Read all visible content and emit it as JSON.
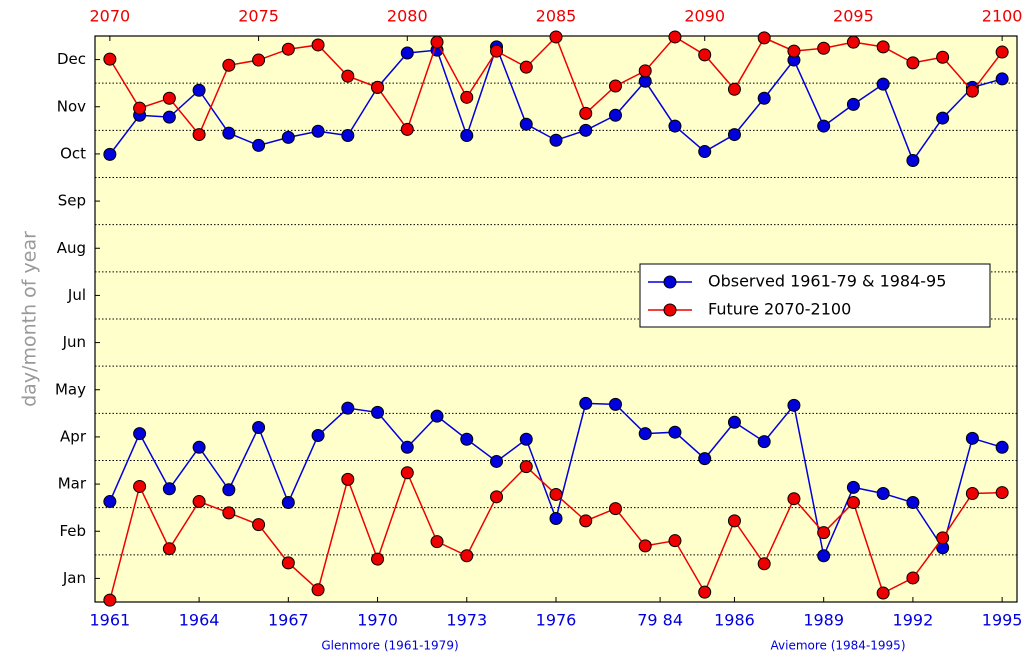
{
  "chart_data": {
    "type": "line",
    "y_label": "day/month of year",
    "annotations": [
      "Glenmore (1961-1979)",
      "Aviemore (1984-1995)"
    ],
    "xlim": [
      -0.5,
      30.5
    ],
    "xticks": [
      {
        "value": 0,
        "label": "1961"
      },
      {
        "value": 3,
        "label": "1964"
      },
      {
        "value": 6,
        "label": "1967"
      },
      {
        "value": 9,
        "label": "1970"
      },
      {
        "value": 12,
        "label": "1973"
      },
      {
        "value": 15,
        "label": "1976"
      },
      {
        "value": 18.5,
        "label": "79 84"
      },
      {
        "value": 21,
        "label": "1986"
      },
      {
        "value": 24,
        "label": "1989"
      },
      {
        "value": 27,
        "label": "1992"
      },
      {
        "value": 30,
        "label": "1995"
      }
    ],
    "x2ticks": [
      {
        "value": 0,
        "label": "2070"
      },
      {
        "value": 5,
        "label": "2075"
      },
      {
        "value": 10,
        "label": "2080"
      },
      {
        "value": 15,
        "label": "2085"
      },
      {
        "value": 20,
        "label": "2090"
      },
      {
        "value": 25,
        "label": "2095"
      },
      {
        "value": 30,
        "label": "2100"
      }
    ],
    "ylim": [
      0,
      12
    ],
    "yticks": [
      {
        "value": 0.5,
        "label": "Jan"
      },
      {
        "value": 1.5,
        "label": "Feb"
      },
      {
        "value": 2.5,
        "label": "Mar"
      },
      {
        "value": 3.5,
        "label": "Apr"
      },
      {
        "value": 4.5,
        "label": "May"
      },
      {
        "value": 5.5,
        "label": "Jun"
      },
      {
        "value": 6.5,
        "label": "Jul"
      },
      {
        "value": 7.5,
        "label": "Aug"
      },
      {
        "value": 8.5,
        "label": "Sep"
      },
      {
        "value": 9.5,
        "label": "Oct"
      },
      {
        "value": 10.5,
        "label": "Nov"
      },
      {
        "value": 11.5,
        "label": "Dec"
      }
    ],
    "ygrid": [
      1,
      2,
      3,
      4,
      5,
      6,
      7,
      8,
      9,
      10,
      11
    ],
    "legend": "right",
    "background": "#ffffcc",
    "series": [
      {
        "name": "Observed 1961-79 & 1984-95",
        "color": "#0000dd",
        "values": [
          9.49,
          10.32,
          10.28,
          10.85,
          9.94,
          9.68,
          9.85,
          9.98,
          9.89,
          10.91,
          11.64,
          11.7,
          9.89,
          11.77,
          10.13,
          9.79,
          10.0,
          10.32,
          11.04,
          10.09,
          9.55,
          9.91,
          10.68,
          11.49,
          10.09,
          10.55,
          10.98,
          9.36,
          10.26,
          10.91,
          11.09
        ],
        "values_lower": [
          2.13,
          3.57,
          2.4,
          3.28,
          2.38,
          3.7,
          2.11,
          3.53,
          4.11,
          4.02,
          3.28,
          3.94,
          3.45,
          2.98,
          3.45,
          1.77,
          4.21,
          4.19,
          3.57,
          3.6,
          3.04,
          3.81,
          3.4,
          4.17,
          0.98,
          2.43,
          2.3,
          2.11,
          1.15,
          3.47,
          3.28
        ]
      },
      {
        "name": "Future 2070-2100",
        "color": "#ee0000",
        "values": [
          11.51,
          10.47,
          10.68,
          9.91,
          11.38,
          11.49,
          11.72,
          11.81,
          11.15,
          10.91,
          10.02,
          11.87,
          10.7,
          11.68,
          11.34,
          11.98,
          10.36,
          10.94,
          11.26,
          11.98,
          11.6,
          10.87,
          11.96,
          11.68,
          11.74,
          11.87,
          11.77,
          11.43,
          11.55,
          10.83,
          11.66
        ],
        "values_lower": [
          0.04,
          2.45,
          1.13,
          2.13,
          1.89,
          1.64,
          0.83,
          0.26,
          2.6,
          0.91,
          2.74,
          1.28,
          0.98,
          2.23,
          2.87,
          2.28,
          1.72,
          1.98,
          1.19,
          1.3,
          0.21,
          1.72,
          0.81,
          2.19,
          1.47,
          2.11,
          0.19,
          0.51,
          1.36,
          2.3,
          2.32
        ]
      }
    ]
  }
}
